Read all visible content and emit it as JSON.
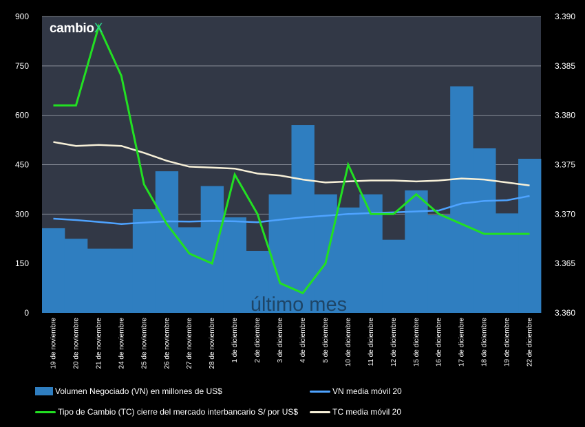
{
  "brand": {
    "name": "cambio",
    "mark": "X"
  },
  "colors": {
    "bar": "#2f7ec0",
    "vn_ma": "#4ea3ff",
    "tc": "#22e022",
    "tc_ma": "#f7f0d8",
    "plot_bg": "#323846",
    "grid": "#8a8f9a"
  },
  "chart_data": {
    "type": "bar",
    "watermark": "último mes",
    "categories": [
      "19 de noviembre",
      "20 de noviembre",
      "21 de noviembre",
      "24 de noviembre",
      "25 de noviembre",
      "26 de noviembre",
      "27 de noviembre",
      "28 de noviembre",
      "1 de diciembre",
      "2 de diciembre",
      "3 de diciembre",
      "4 de diciembre",
      "5 de diciembre",
      "10 de diciembre",
      "11 de diciembre",
      "12 de diciembre",
      "15 de diciembre",
      "16 de diciembre",
      "17 de diciembre",
      "18 de diciembre",
      "19 de diciembre",
      "22 de diciembre"
    ],
    "y_left": {
      "ylim": [
        0,
        900
      ],
      "ticks": [
        "0",
        "150",
        "300",
        "450",
        "600",
        "750",
        "900"
      ]
    },
    "y_right": {
      "ylim": [
        3.36,
        3.39
      ],
      "ticks": [
        "3.360",
        "3.365",
        "3.370",
        "3.375",
        "3.380",
        "3.385",
        "3.390"
      ]
    },
    "series": [
      {
        "name": "Volumen Negociado (VN) en millones de US$",
        "type": "bar",
        "axis": "left",
        "values": [
          257,
          225,
          195,
          195,
          315,
          430,
          260,
          385,
          290,
          188,
          360,
          570,
          360,
          320,
          360,
          222,
          372,
          297,
          688,
          500,
          302,
          468
        ]
      },
      {
        "name": "VN media móvil 20",
        "type": "line",
        "axis": "left",
        "values": [
          286,
          282,
          276,
          270,
          274,
          278,
          277,
          279,
          278,
          275,
          283,
          290,
          295,
          300,
          303,
          305,
          308,
          311,
          332,
          340,
          342,
          355
        ]
      },
      {
        "name": "Tipo de Cambio (TC) cierre del mercado interbancario S/ por US$",
        "type": "line",
        "axis": "right",
        "values": [
          3.381,
          3.381,
          3.389,
          3.384,
          3.373,
          3.369,
          3.366,
          3.365,
          3.374,
          3.37,
          3.363,
          3.362,
          3.365,
          3.375,
          3.37,
          3.37,
          3.372,
          3.37,
          3.369,
          3.368,
          3.368,
          3.368
        ]
      },
      {
        "name": "TC media móvil 20",
        "type": "line",
        "axis": "right",
        "values": [
          3.3773,
          3.3769,
          3.377,
          3.3769,
          3.3762,
          3.3754,
          3.3748,
          3.3747,
          3.3746,
          3.3741,
          3.3739,
          3.3735,
          3.3732,
          3.3733,
          3.3734,
          3.3734,
          3.3733,
          3.3734,
          3.3736,
          3.3735,
          3.3732,
          3.3729
        ]
      }
    ]
  }
}
